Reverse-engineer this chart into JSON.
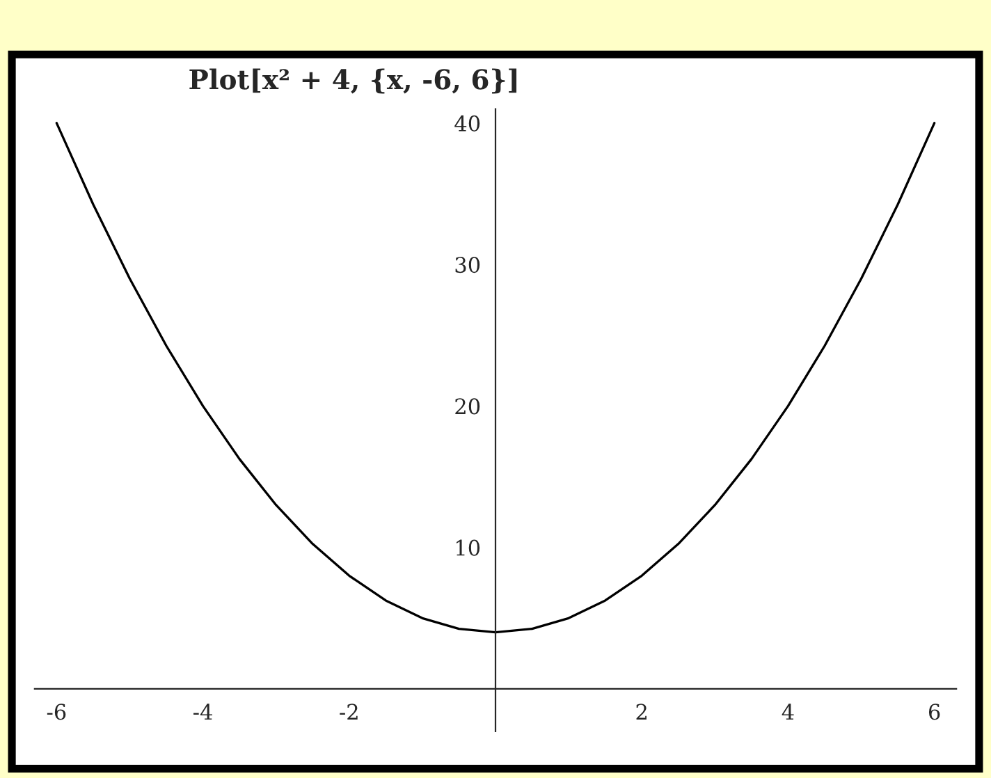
{
  "chart_data": {
    "type": "line",
    "title": "Plot[x² + 4, {x, -6, 6}]",
    "x": [
      -6,
      -5.5,
      -5,
      -4.5,
      -4,
      -3.5,
      -3,
      -2.5,
      -2,
      -1.5,
      -1,
      -0.5,
      0,
      0.5,
      1,
      1.5,
      2,
      2.5,
      3,
      3.5,
      4,
      4.5,
      5,
      5.5,
      6
    ],
    "series": [
      {
        "color": "#000000",
        "values": [
          40,
          34.25,
          29,
          24.25,
          20,
          16.25,
          13,
          10.25,
          8,
          6.25,
          5,
          4.25,
          4,
          4.25,
          5,
          6.25,
          8,
          10.25,
          13,
          16.25,
          20,
          24.25,
          29,
          34.25,
          40
        ]
      }
    ],
    "xlim": [
      -6.3,
      6.3
    ],
    "ylim": [
      -3,
      41
    ],
    "xticks": [
      -6,
      -4,
      -2,
      2,
      4,
      6
    ],
    "yticks": [
      10,
      20,
      30,
      40
    ],
    "grid": false,
    "legend": false,
    "marker": "none",
    "line_style": "solid"
  }
}
